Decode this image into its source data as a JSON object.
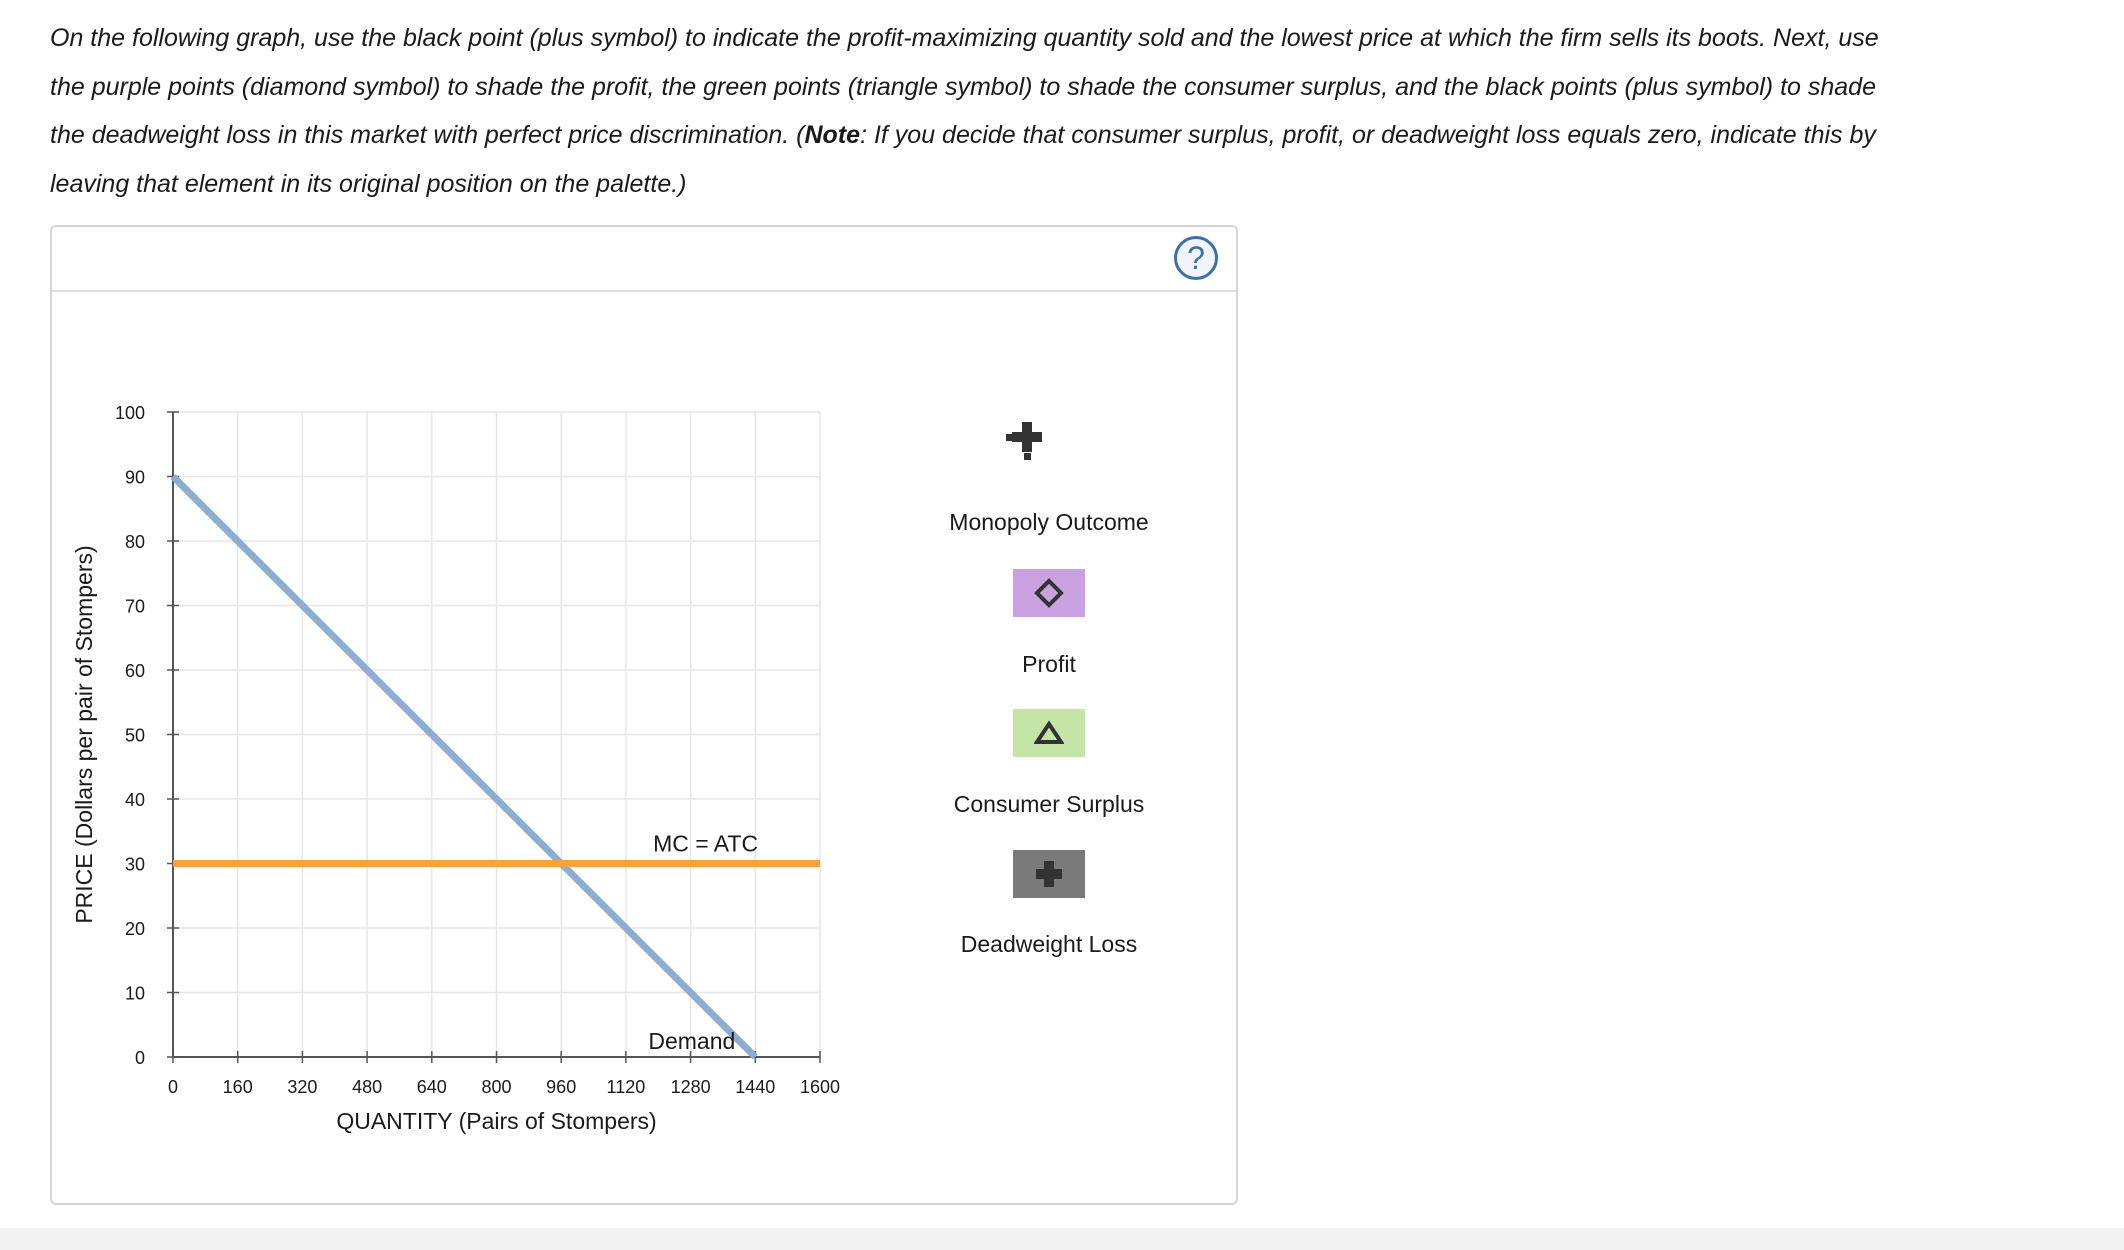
{
  "instructions": {
    "part1": "On the following graph, use the black point (plus symbol) to indicate the profit-maximizing quantity sold and the lowest price at which the firm sells its boots. Next, use the purple points (diamond symbol) to shade the profit, the green points (triangle symbol) to shade the consumer surplus, and the black points (plus symbol) to shade the deadweight loss in this market with perfect price discrimination. (",
    "note_label": "Note",
    "part2": ": If you decide that consumer surplus, profit, or deadweight loss equals zero, indicate this by leaving that element in its original position on the palette.)"
  },
  "help_button": {
    "label": "?"
  },
  "chart_data": {
    "type": "line",
    "xlabel": "QUANTITY (Pairs of Stompers)",
    "ylabel": "PRICE (Dollars per pair of Stompers)",
    "xlim": [
      0,
      1600
    ],
    "ylim": [
      0,
      100
    ],
    "x_ticks": [
      0,
      160,
      320,
      480,
      640,
      800,
      960,
      1120,
      1280,
      1440,
      1600
    ],
    "y_ticks": [
      0,
      10,
      20,
      30,
      40,
      50,
      60,
      70,
      80,
      90,
      100
    ],
    "grid": true,
    "series": [
      {
        "name": "Demand",
        "color": "#8eadd0",
        "points": [
          [
            0,
            90
          ],
          [
            1440,
            0
          ]
        ]
      },
      {
        "name": "MC = ATC",
        "color": "#f2a53a",
        "points": [
          [
            0,
            30
          ],
          [
            1600,
            30
          ]
        ]
      }
    ]
  },
  "palette": [
    {
      "label": "Monopoly Outcome",
      "symbol": "plus-icon",
      "color": "#333333",
      "swatch_bg": ""
    },
    {
      "label": "Profit",
      "symbol": "diamond-icon",
      "color": "#333333",
      "swatch_bg": "#c9a1e0"
    },
    {
      "label": "Consumer Surplus",
      "symbol": "triangle-icon",
      "color": "#333333",
      "swatch_bg": "#c5e5a8"
    },
    {
      "label": "Deadweight Loss",
      "symbol": "plus-icon",
      "color": "#333333",
      "swatch_bg": "#7a7a7a"
    }
  ]
}
